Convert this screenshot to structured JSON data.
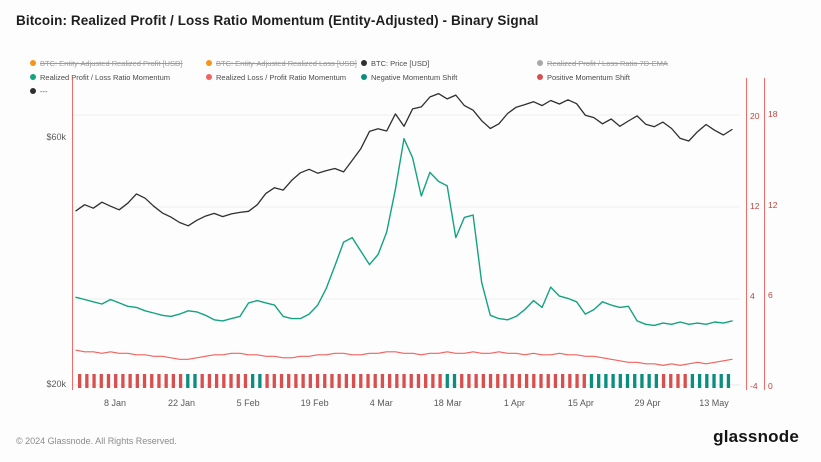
{
  "header": {
    "title": "Bitcoin: Realized Profit / Loss Ratio Momentum (Entity-Adjusted) - Binary Signal"
  },
  "legend": {
    "row1": [
      {
        "label": "BTC: Entity-Adjusted Realized Profit [USD]",
        "color": "#f7931a",
        "enabled": false
      },
      {
        "label": "BTC: Entity-Adjusted Realized Loss [USD]",
        "color": "#f7931a",
        "enabled": false
      },
      {
        "label": "BTC: Price [USD]",
        "color": "#2f2f2f",
        "enabled": true
      },
      {
        "label": "Realized Profit / Loss Ratio 7D-EMA",
        "color": "#a8a8a8",
        "enabled": false
      }
    ],
    "row2": [
      {
        "label": "Realized Profit / Loss Ratio Momentum",
        "color": "#14a37f",
        "enabled": true
      },
      {
        "label": "Realized Loss / Profit Ratio Momentum",
        "color": "#f2635f",
        "enabled": true
      },
      {
        "label": "Negative Momentum Shift",
        "color": "#0b8d80",
        "enabled": true
      },
      {
        "label": "Positive Momentum Shift",
        "color": "#d94f4f",
        "enabled": true
      }
    ],
    "row3": [
      {
        "label": "---",
        "color": "#2f2f2f",
        "enabled": true
      }
    ]
  },
  "footer": {
    "copyright": "© 2024 Glassnode. All Rights Reserved.",
    "logo": "glassnode"
  },
  "chart_data": {
    "type": "line",
    "title": "Bitcoin: Realized Profit / Loss Ratio Momentum (Entity-Adjusted) - Binary Signal",
    "x_ticks": [
      "8 Jan",
      "22 Jan",
      "5 Feb",
      "19 Feb",
      "4 Mar",
      "18 Mar",
      "1 Apr",
      "15 Apr",
      "29 Apr",
      "13 May"
    ],
    "left_axis": {
      "name": "BTC Price [USD]",
      "scale": "log",
      "ticks": [
        "$60k",
        "$20k"
      ],
      "tick_values_usd": [
        60000,
        20000
      ]
    },
    "right_axis_momentum": {
      "ticks": [
        20,
        12,
        4,
        -4
      ],
      "color": "#ef5350"
    },
    "right_axis_ratio": {
      "ticks": [
        18,
        12,
        6,
        0
      ],
      "color": "#ef5350"
    },
    "grid": true,
    "legend_position": "top",
    "series": [
      {
        "name": "BTC: Price [USD]",
        "axis": "price",
        "unit": "USD thousands",
        "color": "#2f2f2f",
        "values": [
          43.4,
          44.6,
          43.9,
          45.1,
          44.3,
          43.6,
          44.9,
          46.8,
          45.9,
          44.3,
          43.0,
          42.2,
          41.2,
          40.6,
          41.6,
          42.4,
          42.9,
          42.3,
          42.8,
          43.1,
          43.3,
          44.6,
          46.9,
          48.1,
          47.6,
          49.7,
          51.4,
          52.2,
          51.3,
          51.9,
          52.4,
          51.6,
          54.3,
          57.2,
          61.8,
          62.5,
          61.9,
          66.8,
          63.2,
          68.3,
          68.9,
          72.0,
          73.1,
          71.4,
          72.6,
          69.3,
          67.9,
          64.8,
          62.6,
          63.9,
          66.9,
          68.8,
          69.6,
          70.5,
          69.3,
          70.9,
          69.8,
          71.1,
          69.9,
          66.4,
          65.7,
          63.9,
          65.3,
          63.2,
          64.7,
          66.2,
          63.8,
          63.1,
          64.4,
          62.6,
          59.9,
          59.2,
          61.7,
          63.7,
          62.1,
          60.8,
          62.3
        ]
      },
      {
        "name": "Realized Profit / Loss Ratio Momentum",
        "axis": "momentum",
        "color": "#14a37f",
        "values": [
          3.8,
          3.6,
          3.4,
          3.2,
          3.6,
          3.3,
          3.0,
          2.9,
          2.6,
          2.4,
          2.2,
          2.1,
          2.3,
          2.6,
          2.5,
          2.2,
          1.8,
          1.7,
          1.9,
          2.1,
          3.3,
          3.5,
          3.3,
          3.1,
          2.1,
          1.9,
          1.9,
          2.3,
          3.1,
          4.6,
          6.6,
          8.7,
          9.1,
          7.9,
          6.7,
          7.6,
          9.6,
          13.4,
          17.9,
          16.2,
          12.8,
          14.9,
          14.1,
          13.7,
          9.1,
          10.9,
          11.1,
          5.1,
          2.2,
          1.9,
          1.8,
          2.1,
          2.7,
          3.5,
          2.9,
          4.7,
          3.9,
          3.7,
          3.4,
          2.3,
          2.7,
          3.4,
          3.1,
          2.9,
          3.0,
          1.7,
          1.4,
          1.3,
          1.5,
          1.4,
          1.6,
          1.4,
          1.5,
          1.4,
          1.6,
          1.5,
          1.7
        ]
      },
      {
        "name": "Realized Loss / Profit Ratio Momentum",
        "axis": "ratio",
        "color": "#f2635f",
        "values": [
          2.3,
          2.2,
          2.2,
          2.1,
          2.2,
          2.1,
          2.1,
          2.0,
          2.0,
          1.9,
          1.9,
          1.8,
          1.7,
          1.7,
          1.8,
          1.9,
          2.0,
          2.0,
          2.1,
          2.1,
          2.0,
          2.0,
          1.9,
          1.9,
          1.8,
          1.8,
          1.9,
          1.9,
          2.0,
          2.0,
          2.1,
          2.1,
          2.0,
          2.0,
          2.1,
          2.1,
          2.2,
          2.2,
          2.1,
          2.1,
          2.0,
          2.1,
          2.1,
          2.2,
          2.1,
          2.1,
          2.2,
          2.1,
          2.1,
          2.2,
          2.1,
          2.1,
          2.0,
          2.1,
          2.0,
          2.0,
          2.1,
          2.0,
          2.0,
          1.9,
          1.9,
          1.8,
          1.7,
          1.6,
          1.5,
          1.5,
          1.4,
          1.4,
          1.3,
          1.4,
          1.3,
          1.4,
          1.5,
          1.4,
          1.5,
          1.6,
          1.7
        ]
      }
    ],
    "binary_signal": {
      "description": "Barcode strip along chart bottom; R = Positive Momentum Shift (red), N = Negative Momentum Shift (teal)",
      "pattern": "RRRRRRRRRRRRRRRNNRRRRRRRNNRRRRRRRRRRRRRRRRRRRRRRRRRNNRRRRRRRRRRRRRRRRRRNNNNNNNNNNRRRRNNNNNN",
      "positive_color": "#d94f4f",
      "negative_color": "#0b8d80"
    }
  }
}
